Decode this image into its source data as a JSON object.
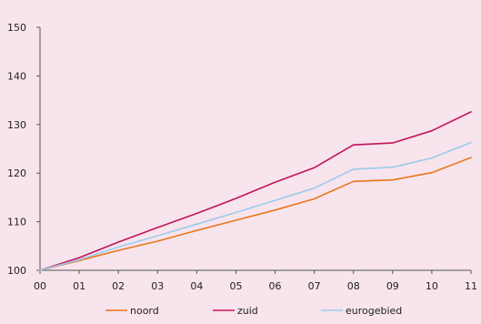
{
  "chart_data": {
    "type": "line",
    "x": [
      "00",
      "01",
      "02",
      "03",
      "04",
      "05",
      "06",
      "07",
      "08",
      "09",
      "10",
      "11"
    ],
    "ylim": [
      100,
      150
    ],
    "yticks": [
      100,
      110,
      120,
      130,
      140,
      150
    ],
    "grid": false,
    "legend_position": "bottom",
    "series": [
      {
        "name": "noord",
        "color": "#e8771e",
        "values": [
          100,
          102.0,
          104.1,
          106.0,
          108.2,
          110.3,
          112.4,
          114.7,
          118.3,
          118.6,
          120.1,
          123.2
        ]
      },
      {
        "name": "zuid",
        "color": "#c4135c",
        "values": [
          100,
          102.6,
          105.8,
          108.8,
          111.7,
          114.8,
          118.1,
          121.1,
          125.8,
          126.2,
          128.7,
          132.6
        ]
      },
      {
        "name": "eurogebied",
        "color": "#9ccbee",
        "values": [
          100,
          102.2,
          104.8,
          107.1,
          109.5,
          111.9,
          114.4,
          116.9,
          120.8,
          121.2,
          123.1,
          126.3
        ]
      }
    ]
  }
}
